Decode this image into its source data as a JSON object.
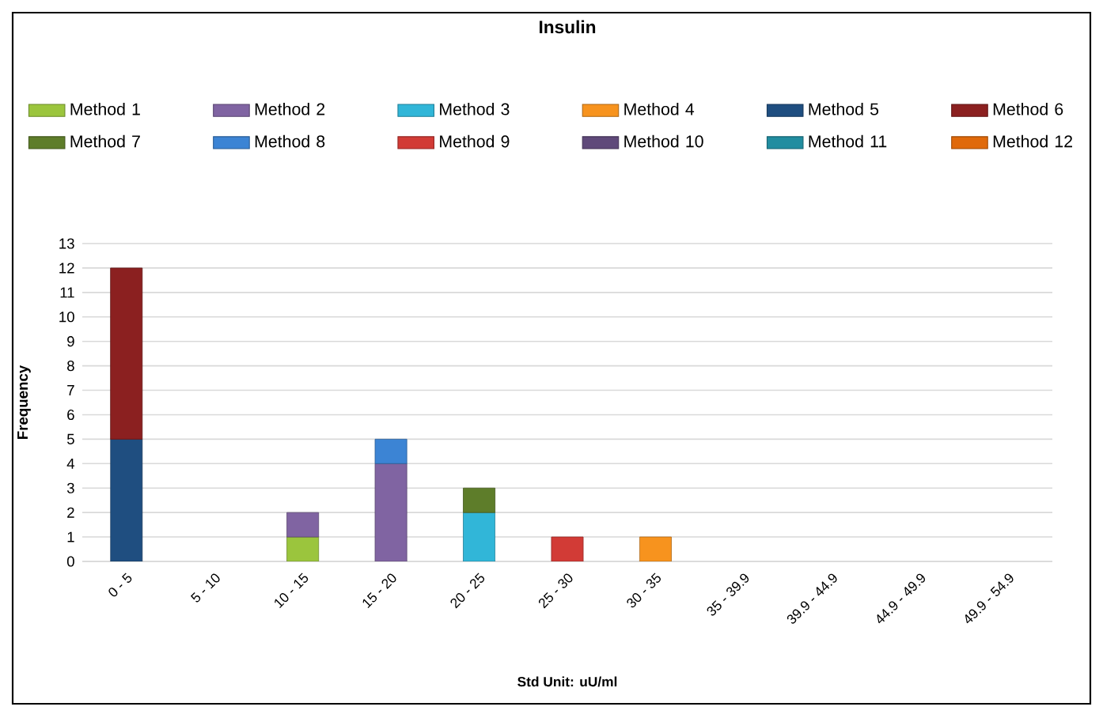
{
  "chart_data": {
    "type": "bar",
    "title": "Insulin",
    "xlabel": "Std Unit: uU/ml",
    "ylabel": "Frequency",
    "categories": [
      "0 - 5",
      "5 - 10",
      "10 - 15",
      "15 - 20",
      "20 - 25",
      "25 - 30",
      "30 - 35",
      "35 - 39.9",
      "39.9 - 44.9",
      "44.9 - 49.9",
      "49.9 - 54.9"
    ],
    "stacked": true,
    "series": [
      {
        "name": "Method 1",
        "color": "#9bc53d",
        "values": [
          null,
          null,
          1,
          null,
          null,
          null,
          null,
          null,
          null,
          null,
          null
        ]
      },
      {
        "name": "Method 2",
        "color": "#8064a2",
        "values": [
          null,
          null,
          1,
          4,
          null,
          null,
          null,
          null,
          null,
          null,
          null
        ]
      },
      {
        "name": "Method 3",
        "color": "#31b6d8",
        "values": [
          null,
          null,
          null,
          null,
          2,
          null,
          null,
          null,
          null,
          null,
          null
        ]
      },
      {
        "name": "Method 4",
        "color": "#f7931e",
        "values": [
          null,
          null,
          null,
          null,
          null,
          null,
          1,
          null,
          null,
          null,
          null
        ]
      },
      {
        "name": "Method 5",
        "color": "#1f4e80",
        "values": [
          5,
          null,
          null,
          null,
          null,
          null,
          null,
          null,
          null,
          null,
          null
        ]
      },
      {
        "name": "Method 6",
        "color": "#8b2020",
        "values": [
          7,
          null,
          null,
          null,
          null,
          null,
          null,
          null,
          null,
          null,
          null
        ]
      },
      {
        "name": "Method 7",
        "color": "#5e7d2a",
        "values": [
          null,
          null,
          null,
          null,
          1,
          null,
          null,
          null,
          null,
          null,
          null
        ]
      },
      {
        "name": "Method 8",
        "color": "#3c84d4",
        "values": [
          null,
          null,
          null,
          1,
          null,
          null,
          null,
          null,
          null,
          null,
          null
        ]
      },
      {
        "name": "Method 9",
        "color": "#d23b36",
        "values": [
          null,
          null,
          null,
          null,
          null,
          1,
          null,
          null,
          null,
          null,
          null
        ]
      },
      {
        "name": "Method 10",
        "color": "#5f497a",
        "values": [
          null,
          null,
          null,
          null,
          null,
          null,
          null,
          null,
          null,
          null,
          null
        ]
      },
      {
        "name": "Method 11",
        "color": "#218da0",
        "values": [
          null,
          null,
          null,
          null,
          null,
          null,
          null,
          null,
          null,
          null,
          null
        ]
      },
      {
        "name": "Method 12",
        "color": "#e0690a",
        "values": [
          null,
          null,
          null,
          null,
          null,
          null,
          null,
          null,
          null,
          null,
          null
        ]
      }
    ],
    "ylim": [
      0,
      13
    ],
    "yticks": [
      0,
      1,
      2,
      3,
      4,
      5,
      6,
      7,
      8,
      9,
      10,
      11,
      12,
      13
    ],
    "grid": "y",
    "legend": "top"
  }
}
